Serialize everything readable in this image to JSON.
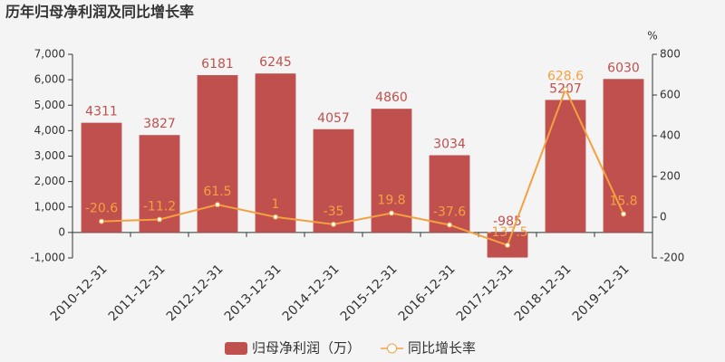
{
  "chart_data": {
    "type": "bar",
    "title": "历年归母净利润及同比增长率",
    "y2label": "%",
    "categories": [
      "2010-12-31",
      "2011-12-31",
      "2012-12-31",
      "2013-12-31",
      "2014-12-31",
      "2015-12-31",
      "2016-12-31",
      "2017-12-31",
      "2018-12-31",
      "2019-12-31"
    ],
    "series": [
      {
        "name": "归母净利润（万）",
        "type": "bar",
        "color": "#c0504d",
        "label_color": "#c0504d",
        "values": [
          4311,
          3827,
          6181,
          6245,
          4057,
          4860,
          3034,
          -985,
          5207,
          6030
        ]
      },
      {
        "name": "同比增长率",
        "type": "line",
        "axis": "y2",
        "color": "#f4a041",
        "label_color": "#f4a041",
        "values": [
          -20.6,
          -11.2,
          61.5,
          1,
          -35,
          19.8,
          -37.6,
          -137.5,
          628.6,
          15.8
        ]
      }
    ],
    "ylim": [
      -1000,
      7000
    ],
    "yticks": [
      {
        "value": -1000,
        "label": "-1,000"
      },
      0,
      {
        "value": 1000,
        "label": "1,000"
      },
      {
        "value": 2000,
        "label": "2,000"
      },
      {
        "value": 3000,
        "label": "3,000"
      },
      {
        "value": 4000,
        "label": "4,000"
      },
      {
        "value": 5000,
        "label": "5,000"
      },
      {
        "value": 6000,
        "label": "6,000"
      },
      {
        "value": 7000,
        "label": "7,000"
      }
    ],
    "y2lim": [
      -200,
      800
    ],
    "y2ticks": [
      -200,
      0,
      200,
      400,
      600,
      800
    ],
    "grid": false,
    "legend": "bottom"
  }
}
